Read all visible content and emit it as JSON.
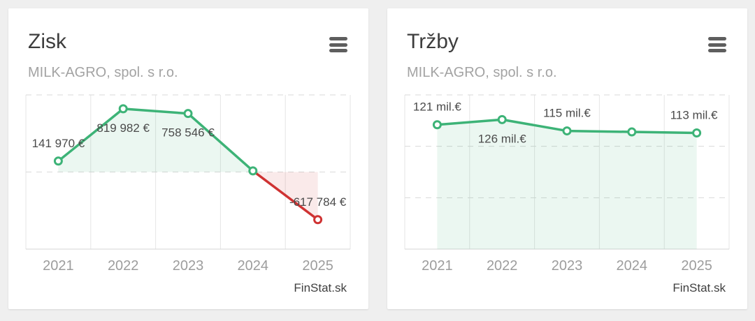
{
  "page": {
    "background_color": "#efefef"
  },
  "cards": [
    {
      "title": "Zisk",
      "subtitle": "MILK-AGRO, spol. s r.o.",
      "watermark": "FinStat.sk",
      "menu_icon": "hamburger-menu-icon"
    },
    {
      "title": "Tržby",
      "subtitle": "MILK-AGRO, spol. s r.o.",
      "watermark": "FinStat.sk",
      "menu_icon": "hamburger-menu-icon"
    }
  ],
  "chart_data": [
    {
      "type": "line",
      "title": "Zisk",
      "subtitle": "MILK-AGRO, spol. s r.o.",
      "unit": "€",
      "categories": [
        "2021",
        "2022",
        "2023",
        "2024",
        "2025"
      ],
      "values": [
        141970,
        819982,
        758546,
        15000,
        -617784
      ],
      "value_estimated": [
        false,
        false,
        false,
        true,
        false
      ],
      "point_labels": [
        {
          "text": "141 970 €",
          "side": "above",
          "dx": 0
        },
        {
          "text": "819 982 €",
          "side": "below",
          "dx": 0
        },
        {
          "text": "758 546 €",
          "side": "below",
          "dx": 0
        },
        {
          "text": "",
          "side": "none",
          "dx": 0
        },
        {
          "text": "-617 784 €",
          "side": "above",
          "dx": 0
        }
      ],
      "ylim": [
        -1000000,
        1000000
      ],
      "gridline_values": [
        -1000000,
        0,
        1000000
      ],
      "baseline": 0,
      "grid": true,
      "legend": false,
      "colors": {
        "line_positive": "#3db377",
        "line_negative": "#cf3232",
        "fill_positive": "rgba(61,179,119,0.10)",
        "fill_negative": "rgba(207,50,50,0.10)",
        "marker_fill": "#ffffff",
        "label": "#4b4b4b",
        "axis_label": "#9d9d9d"
      }
    },
    {
      "type": "line",
      "title": "Tržby",
      "subtitle": "MILK-AGRO, spol. s r.o.",
      "unit": "mil.€",
      "categories": [
        "2021",
        "2022",
        "2023",
        "2024",
        "2025"
      ],
      "values": [
        121,
        126,
        115,
        114,
        113
      ],
      "value_estimated": [
        false,
        false,
        false,
        true,
        false
      ],
      "point_labels": [
        {
          "text": "121 mil.€",
          "side": "above",
          "dx": 0
        },
        {
          "text": "126 mil.€",
          "side": "below",
          "dx": 0
        },
        {
          "text": "115 mil.€",
          "side": "above",
          "dx": 0
        },
        {
          "text": "",
          "side": "none",
          "dx": 0
        },
        {
          "text": "113 mil.€",
          "side": "above",
          "dx": -4
        }
      ],
      "ylim": [
        0,
        150
      ],
      "gridline_values": [
        0,
        50,
        100,
        150
      ],
      "baseline": 0,
      "grid": true,
      "legend": false,
      "colors": {
        "line_positive": "#3db377",
        "line_negative": "#cf3232",
        "fill_positive": "rgba(61,179,119,0.10)",
        "fill_negative": "rgba(207,50,50,0.10)",
        "marker_fill": "#ffffff",
        "label": "#4b4b4b",
        "axis_label": "#9d9d9d"
      }
    }
  ]
}
